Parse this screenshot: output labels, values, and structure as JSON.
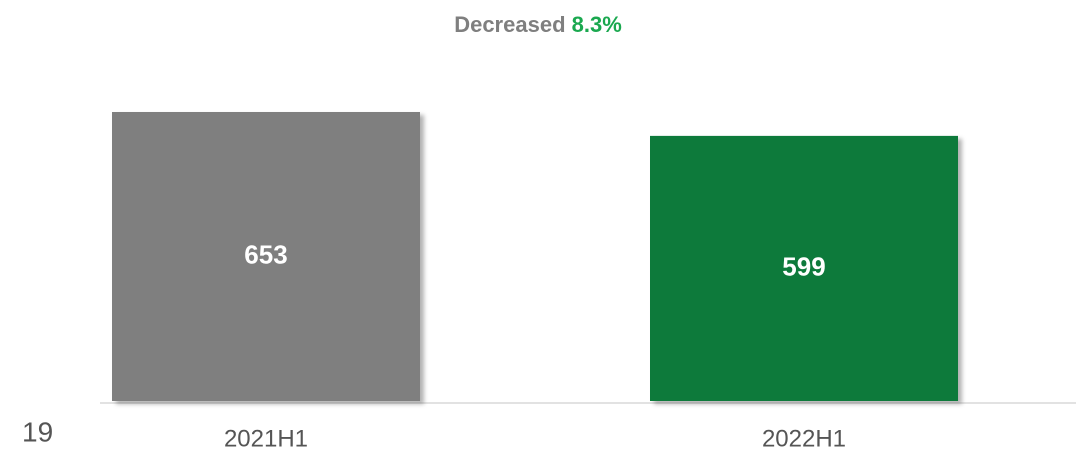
{
  "chart_data": {
    "type": "bar",
    "title": "Decreased",
    "title_highlight": "8.3%",
    "categories": [
      "2021H1",
      "2022H1"
    ],
    "values": [
      653,
      599
    ],
    "colors": [
      "#7f7f7f",
      "#0b7a3b"
    ],
    "highlight_color": "#1aa84f"
  },
  "page_number": "19"
}
